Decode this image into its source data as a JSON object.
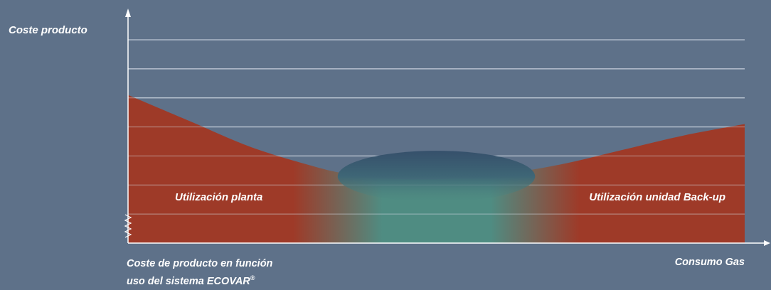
{
  "chart_data": {
    "type": "area",
    "ylabel": "Coste producto",
    "xlabel": "Consumo Gas",
    "caption_line1": "Coste de producto en función",
    "caption_line2": "uso del sistema ECOVAR",
    "caption_mark": "®",
    "region_left_label": "Utilización planta",
    "region_right_label": "Utilización unidad Back-up",
    "grid": true,
    "ylim": [
      0,
      7
    ],
    "xlim": [
      0,
      100
    ],
    "y_broken_axis": true,
    "curve": {
      "x": [
        0,
        10,
        20,
        30,
        35,
        40,
        45,
        50,
        55,
        60,
        70,
        80,
        90,
        100
      ],
      "y": [
        5.1,
        4.2,
        3.3,
        2.65,
        2.4,
        2.25,
        2.2,
        2.2,
        2.25,
        2.35,
        2.7,
        3.2,
        3.7,
        4.1
      ]
    },
    "optimal_zone": {
      "x_center": 50,
      "x_halfwidth": 16,
      "y_center": 2.2
    },
    "colors": {
      "background": "#5e7189",
      "cost_area": "#9e3a28",
      "optimal_area": "#4f8c82",
      "ellipse": "#36506b",
      "axis": "#ffffff",
      "grid": "#d4dce6"
    }
  }
}
